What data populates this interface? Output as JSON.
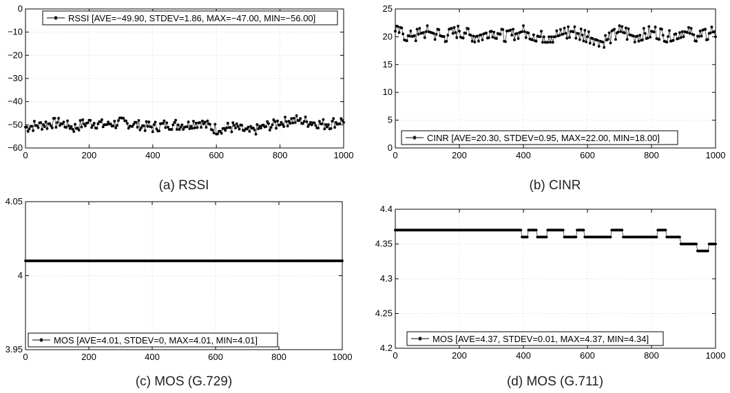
{
  "chart_data": [
    {
      "type": "line",
      "panel": "a",
      "legend_label": "RSSI [AVE=−49.90, STDEV=1.86, MAX=−47.00, MIN=−56.00]",
      "caption": "(a)  RSSI",
      "legend_position": "top",
      "xlim": [
        0,
        1000
      ],
      "ylim": [
        -60,
        0
      ],
      "xticks": [
        0,
        200,
        400,
        600,
        800,
        1000
      ],
      "yticks": [
        -60,
        -50,
        -40,
        -30,
        -20,
        -10,
        0
      ],
      "ytick_labels": [
        "−60",
        "−50",
        "−40",
        "−30",
        "−20",
        "−10",
        "0"
      ],
      "grid": true,
      "series": [
        {
          "x": [
            0,
            50,
            100,
            150,
            200,
            250,
            300,
            350,
            400,
            450,
            500,
            550,
            600,
            650,
            700,
            750,
            800,
            850,
            900,
            950,
            1000
          ],
          "y": [
            -51,
            -50,
            -49,
            -51,
            -49,
            -50,
            -49,
            -50,
            -51,
            -50,
            -50,
            -49,
            -52,
            -51,
            -53,
            -51,
            -49,
            -48,
            -49,
            -50,
            -48
          ]
        }
      ]
    },
    {
      "type": "line",
      "panel": "b",
      "legend_label": "CINR [AVE=20.30, STDEV=0.95, MAX=22.00, MIN=18.00]",
      "caption": "(b)  CINR",
      "legend_position": "bottom-left",
      "xlim": [
        0,
        1000
      ],
      "ylim": [
        0,
        25
      ],
      "xticks": [
        0,
        200,
        400,
        600,
        800,
        1000
      ],
      "yticks": [
        0,
        5,
        10,
        15,
        20,
        25
      ],
      "ytick_labels": [
        "0",
        "5",
        "10",
        "15",
        "20",
        "25"
      ],
      "grid": true,
      "series": [
        {
          "x": [
            0,
            50,
            100,
            150,
            200,
            250,
            300,
            350,
            400,
            450,
            500,
            550,
            600,
            650,
            700,
            750,
            800,
            850,
            900,
            950,
            1000
          ],
          "y": [
            21,
            20,
            21,
            20,
            21,
            20,
            21,
            20,
            21,
            20,
            20,
            21,
            20,
            19,
            21,
            20,
            21,
            20,
            21,
            20,
            21
          ]
        }
      ]
    },
    {
      "type": "line",
      "panel": "c",
      "legend_label": "MOS [AVE=4.01, STDEV=0, MAX=4.01, MIN=4.01]",
      "caption": "(c)  MOS  (G.729)",
      "legend_position": "bottom-left",
      "xlim": [
        0,
        1000
      ],
      "ylim": [
        3.95,
        4.05
      ],
      "xticks": [
        0,
        200,
        400,
        600,
        800,
        1000
      ],
      "yticks": [
        3.95,
        4,
        4.05
      ],
      "ytick_labels": [
        "3.95",
        "4",
        "4.05"
      ],
      "grid": true,
      "series": [
        {
          "x": [
            0,
            1000
          ],
          "y": [
            4.01,
            4.01
          ]
        }
      ]
    },
    {
      "type": "line",
      "panel": "d",
      "legend_label": "MOS [AVE=4.37, STDEV=0.01, MAX=4.37, MIN=4.34]",
      "caption": "(d)  MOS  (G.711)",
      "legend_position": "bottom-left",
      "xlim": [
        0,
        1000
      ],
      "ylim": [
        4.2,
        4.4
      ],
      "xticks": [
        0,
        200,
        400,
        600,
        800,
        1000
      ],
      "yticks": [
        4.2,
        4.25,
        4.3,
        4.35,
        4.4
      ],
      "ytick_labels": [
        "4.2",
        "4.25",
        "4.3",
        "4.35",
        "4.4"
      ],
      "grid": true,
      "series": [
        {
          "x": [
            0,
            390,
            400,
            430,
            450,
            500,
            550,
            580,
            600,
            650,
            700,
            720,
            750,
            800,
            840,
            850,
            880,
            900,
            930,
            950,
            970,
            990,
            1000
          ],
          "y": [
            4.37,
            4.37,
            4.36,
            4.37,
            4.36,
            4.37,
            4.36,
            4.37,
            4.36,
            4.36,
            4.37,
            4.36,
            4.36,
            4.36,
            4.37,
            4.36,
            4.36,
            4.35,
            4.35,
            4.34,
            4.34,
            4.35,
            4.35
          ]
        }
      ]
    }
  ]
}
